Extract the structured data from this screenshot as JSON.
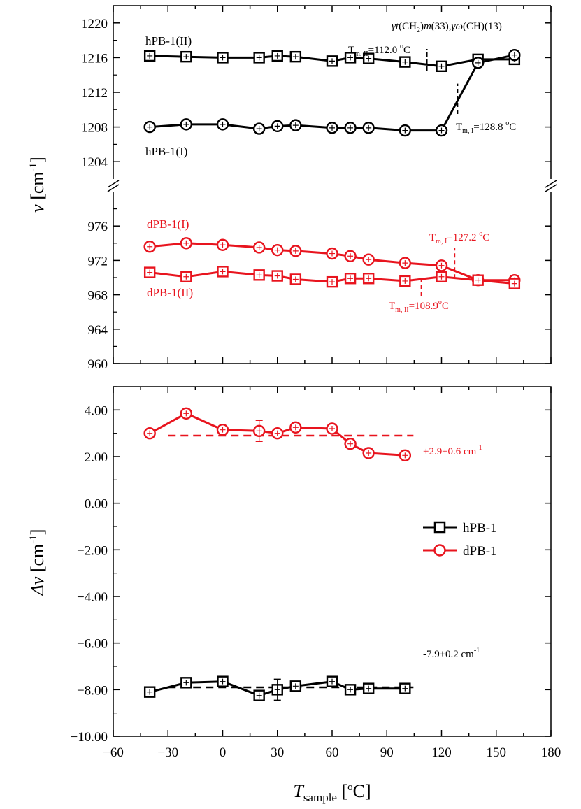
{
  "colors": {
    "h": "#000000",
    "d": "#e8141e"
  },
  "chart_data": [
    {
      "type": "line",
      "panel": "top",
      "ylabel_main": "v",
      "ylabel_unit": " [cm",
      "ylabel_exp": "-1",
      "ylabel_close": "]",
      "xlim": [
        -60,
        180
      ],
      "upper_ylim": [
        1202,
        1222
      ],
      "upper_yticks": [
        "1204",
        "1208",
        "1212",
        "1216",
        "1220"
      ],
      "lower_ylim": [
        960,
        980
      ],
      "lower_yticks": [
        "960",
        "964",
        "968",
        "972",
        "976"
      ],
      "mode_label": {
        "g1": "γ",
        "t": "t",
        "ch": "(CH",
        "sub2": "2",
        "m": ")",
        "mi": "m",
        "n33": "(33),",
        "g2": "γω",
        "tail": "(CH)(13)"
      },
      "series": [
        {
          "name": "hPB-1(II)",
          "label": "hPB-1(II)",
          "color": "h",
          "marker": "square",
          "segment": "upper",
          "x": [
            -40,
            -20,
            0,
            20,
            30,
            40,
            60,
            70,
            80,
            100,
            120,
            140,
            160
          ],
          "y": [
            1216.2,
            1216.1,
            1216.0,
            1216.0,
            1216.2,
            1216.1,
            1215.6,
            1216.0,
            1215.9,
            1215.5,
            1215.0,
            1215.8,
            1215.8
          ]
        },
        {
          "name": "hPB-1(I)",
          "label": "hPB-1(I)",
          "color": "h",
          "marker": "circle",
          "segment": "upper",
          "x": [
            -40,
            -20,
            0,
            20,
            30,
            40,
            60,
            70,
            80,
            100,
            120,
            140,
            160
          ],
          "y": [
            1208.0,
            1208.3,
            1208.3,
            1207.8,
            1208.1,
            1208.2,
            1207.9,
            1207.9,
            1207.9,
            1207.6,
            1207.6,
            1215.4,
            1216.3
          ]
        },
        {
          "name": "dPB-1(I)",
          "label": "dPB-1(I)",
          "color": "d",
          "marker": "circle",
          "segment": "lower",
          "x": [
            -40,
            -20,
            0,
            20,
            30,
            40,
            60,
            70,
            80,
            100,
            120,
            140,
            160
          ],
          "y": [
            973.6,
            974.0,
            973.8,
            973.5,
            973.2,
            973.1,
            972.8,
            972.5,
            972.1,
            971.7,
            971.4,
            969.7,
            969.7
          ]
        },
        {
          "name": "dPB-1(II)",
          "label": "dPB-1(II)",
          "color": "d",
          "marker": "square",
          "segment": "lower",
          "x": [
            -40,
            -20,
            0,
            20,
            30,
            40,
            60,
            70,
            80,
            100,
            120,
            140,
            160
          ],
          "y": [
            970.6,
            970.1,
            970.7,
            970.3,
            970.2,
            969.8,
            969.5,
            969.9,
            969.9,
            969.6,
            970.1,
            969.7,
            969.3
          ]
        }
      ],
      "annotations": [
        {
          "id": "tm-h-ii",
          "pre": "T",
          "sub": "m, II",
          "mid": "=112.0 ",
          "sup": "o",
          "post": "C",
          "color": "h",
          "x": 112.0,
          "segment": "upper",
          "y_from": 1214.5,
          "y_to": 1217.0
        },
        {
          "id": "tm-h-i",
          "pre": "T",
          "sub": "m, I",
          "mid": "=128.8 ",
          "sup": "o",
          "post": "C",
          "color": "h",
          "x": 128.8,
          "segment": "upper",
          "y_from": 1209.5,
          "y_to": 1213.0
        },
        {
          "id": "tm-d-i",
          "pre": "T",
          "sub": "m, I",
          "mid": "=127.2 ",
          "sup": "o",
          "post": "C",
          "color": "d",
          "x": 127.2,
          "segment": "lower",
          "y_from": 969.9,
          "y_to": 973.5
        },
        {
          "id": "tm-d-ii",
          "pre": "T",
          "sub": "m, II",
          "mid": "=108.9",
          "sup": "o",
          "post": "C",
          "color": "d",
          "x": 108.9,
          "segment": "lower",
          "y_from": 967.8,
          "y_to": 970.1
        }
      ]
    },
    {
      "type": "line",
      "panel": "bottom",
      "xlabel_main": "T",
      "xlabel_sub": "sample",
      "xlabel_unit": " [",
      "xlabel_sup": "o",
      "xlabel_close": "C]",
      "ylabel_main": "Δv",
      "ylabel_unit": " [cm",
      "ylabel_exp": "-1",
      "ylabel_close": "]",
      "xlim": [
        -60,
        180
      ],
      "ylim": [
        -10,
        5
      ],
      "xticks": [
        "−60",
        "−30",
        "0",
        "30",
        "60",
        "90",
        "120",
        "150",
        "180"
      ],
      "yticks": [
        "−10.00",
        "−8.00",
        "−6.00",
        "−4.00",
        "−2.00",
        "0.00",
        "2.00",
        "4.00"
      ],
      "series": [
        {
          "name": "hPB-1",
          "color": "h",
          "marker": "square",
          "x": [
            -40,
            -20,
            0,
            20,
            30,
            40,
            60,
            70,
            80,
            100
          ],
          "y": [
            -8.1,
            -7.7,
            -7.65,
            -8.25,
            -8.0,
            -7.85,
            -7.65,
            -8.0,
            -7.95,
            -7.95
          ]
        },
        {
          "name": "dPB-1",
          "color": "d",
          "marker": "circle",
          "x": [
            -40,
            -20,
            0,
            20,
            30,
            40,
            60,
            70,
            80,
            100
          ],
          "y": [
            3.0,
            3.85,
            3.15,
            3.1,
            3.0,
            3.25,
            3.2,
            2.55,
            2.15,
            2.05
          ]
        }
      ],
      "mean_lines": [
        {
          "color": "d",
          "value": 2.9,
          "x_from": -30,
          "x_to": 100,
          "text": "+2.9±0.6 cm",
          "sup": "-1"
        },
        {
          "color": "h",
          "value": -7.9,
          "x_from": -30,
          "x_to": 100,
          "text": "-7.9±0.2 cm",
          "sup": "-1"
        }
      ],
      "legend": {
        "position": "right-middle",
        "entries": [
          "hPB-1",
          "dPB-1"
        ]
      }
    }
  ]
}
